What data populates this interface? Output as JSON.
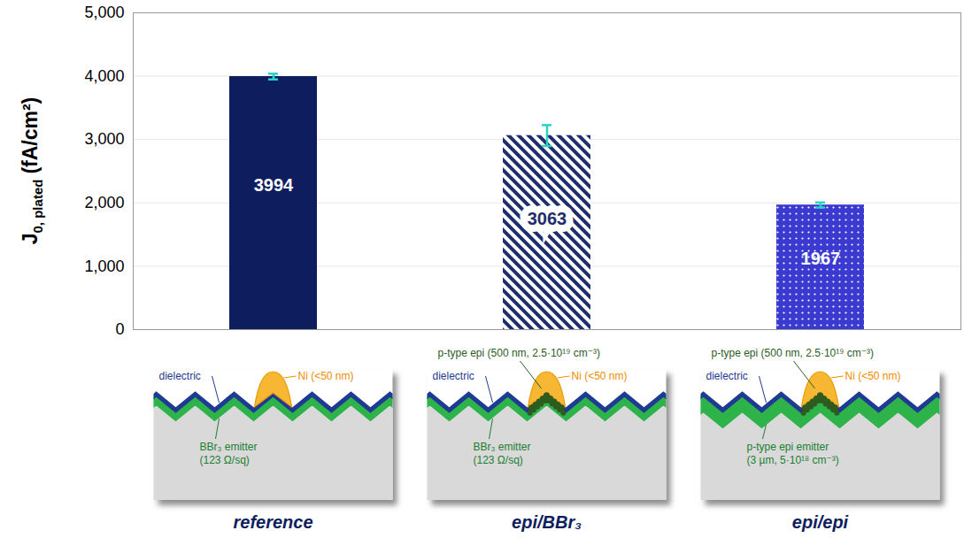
{
  "chart_data": {
    "type": "bar",
    "y_label": {
      "symbol": "J",
      "subscript": "0, plated",
      "unit": "(fA/cm²)"
    },
    "categories": [
      "reference",
      "epi/BBr₃",
      "epi/epi"
    ],
    "values": [
      3994,
      3063,
      1967
    ],
    "errors": [
      45,
      165,
      40
    ],
    "colors": [
      "#0d1d5e",
      "#1e2d6b",
      "#3a3ad0"
    ],
    "ylim": [
      0,
      5000
    ],
    "yticks": [
      0,
      1000,
      2000,
      3000,
      4000,
      5000
    ],
    "grid": true,
    "data_labels": true,
    "schematics": [
      {
        "dielectric": "dielectric",
        "metal": "Ni (<50 nm)",
        "emitter": [
          "BBr₃ emitter",
          "(123 Ω/sq)"
        ]
      },
      {
        "dielectric": "dielectric",
        "metal": "Ni (<50 nm)",
        "epi": "p-type epi (500 nm, 2.5·10¹⁹ cm⁻³)",
        "emitter": [
          "BBr₃ emitter",
          "(123 Ω/sq)"
        ]
      },
      {
        "dielectric": "dielectric",
        "metal": "Ni (<50 nm)",
        "epi": "p-type epi (500 nm, 2.5·10¹⁹ cm⁻³)",
        "emitter": [
          "p-type epi emitter",
          "(3 µm, 5·10¹⁸ cm⁻³)"
        ]
      }
    ]
  }
}
